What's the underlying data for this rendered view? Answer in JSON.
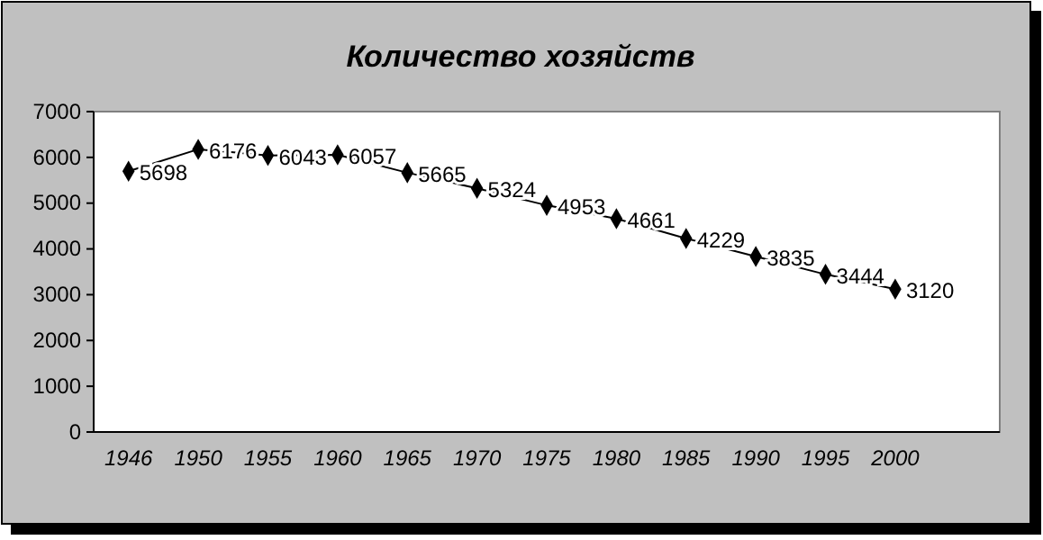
{
  "chart_data": {
    "type": "line",
    "title": "Количество хозяйств",
    "categories": [
      "1946",
      "1950",
      "1955",
      "1960",
      "1965",
      "1970",
      "1975",
      "1980",
      "1985",
      "1990",
      "1995",
      "2000",
      null
    ],
    "values": [
      5698,
      6176,
      6043,
      6057,
      5665,
      5324,
      4953,
      4661,
      4229,
      3835,
      3444,
      3120,
      null
    ],
    "color": "#000000",
    "marker": "diamond",
    "line_style": "solid",
    "data_labels": true,
    "ylim": [
      0,
      7000
    ],
    "yticks": [
      0,
      1000,
      2000,
      3000,
      4000,
      5000,
      6000,
      7000
    ],
    "grid": false
  }
}
